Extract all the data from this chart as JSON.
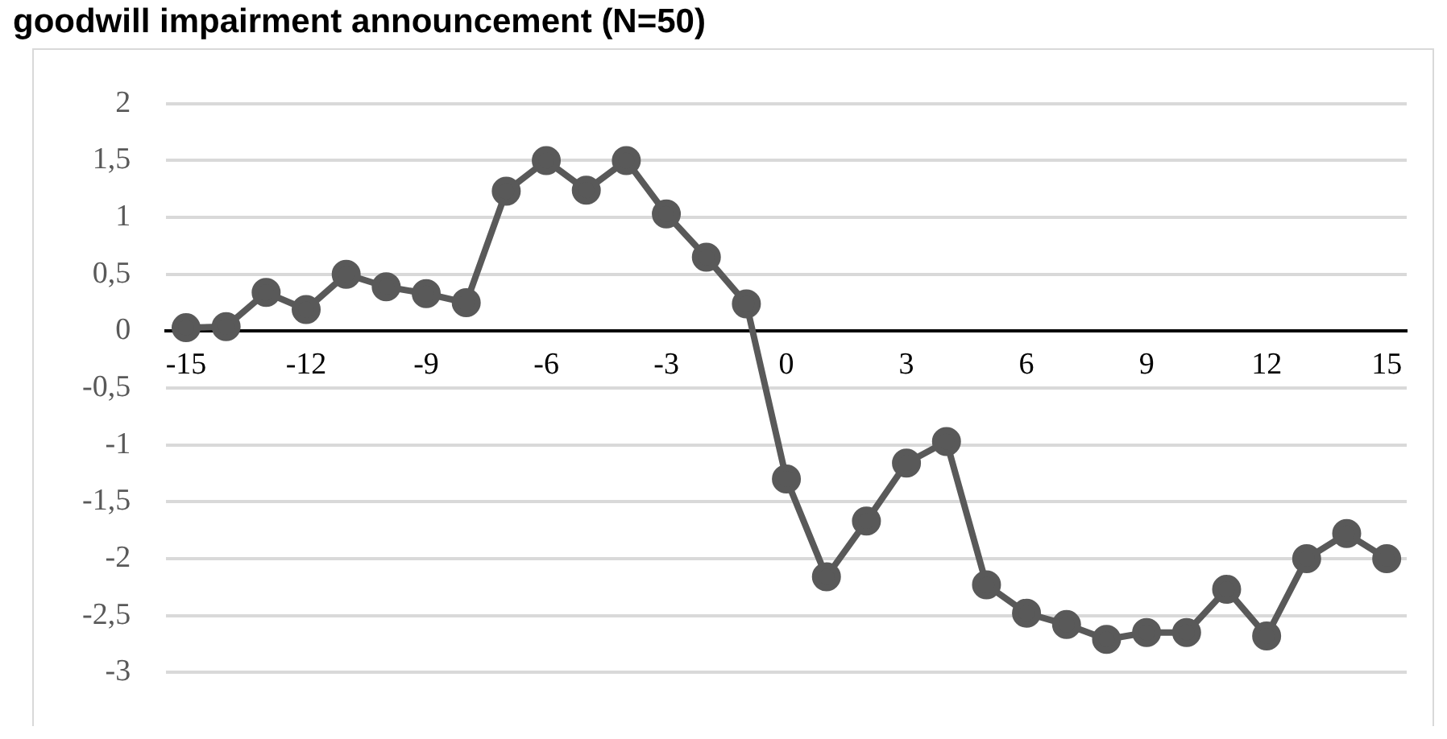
{
  "chart_data": {
    "type": "line",
    "title": "goodwill impairment announcement (N=50)",
    "categories": [
      "-15",
      null,
      null,
      "-12",
      null,
      null,
      "-9",
      null,
      null,
      "-6",
      null,
      null,
      "-3",
      null,
      null,
      "0",
      null,
      null,
      "3",
      null,
      null,
      "6",
      null,
      null,
      "9",
      null,
      null,
      "12",
      null,
      null,
      "15"
    ],
    "series": [
      {
        "color": "#595959",
        "values": [
          0.03,
          0.04,
          0.34,
          0.19,
          0.5,
          0.39,
          0.33,
          0.25,
          1.23,
          1.5,
          1.24,
          1.5,
          1.03,
          0.65,
          0.24,
          -1.3,
          -2.16,
          -1.67,
          -1.16,
          -0.97,
          -2.23,
          -2.48,
          -2.58,
          -2.71,
          -2.65,
          -2.65,
          -2.27,
          -2.68,
          -2.0,
          -1.78,
          -2.0
        ]
      }
    ],
    "ylim": [
      -3,
      2
    ],
    "yticks": [
      {
        "value": -3,
        "label": "-3"
      },
      {
        "value": -2.5,
        "label": "-2,5"
      },
      {
        "value": -2,
        "label": "-2"
      },
      {
        "value": -1.5,
        "label": "-1,5"
      },
      {
        "value": -1,
        "label": "-1"
      },
      {
        "value": -0.5,
        "label": "-0,5"
      },
      {
        "value": 0,
        "label": "0"
      },
      {
        "value": 0.5,
        "label": "0,5"
      },
      {
        "value": 1,
        "label": "1"
      },
      {
        "value": 1.5,
        "label": "1,5"
      },
      {
        "value": 2,
        "label": "2"
      }
    ],
    "grid": "y",
    "legend": false,
    "marker": "circle",
    "line_style": "solid"
  }
}
